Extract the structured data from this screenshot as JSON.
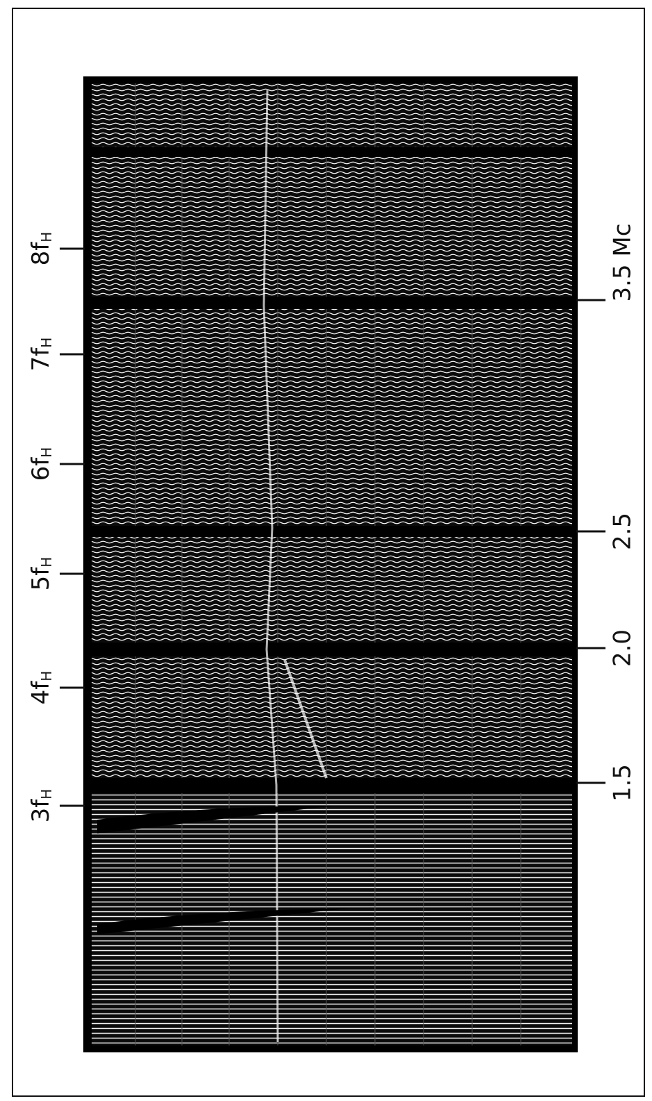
{
  "harmonic_labels": [
    {
      "text": "3f",
      "sub": "H"
    },
    {
      "text": "4f",
      "sub": "H"
    },
    {
      "text": "5f",
      "sub": "H"
    },
    {
      "text": "6f",
      "sub": "H"
    },
    {
      "text": "7f",
      "sub": "H"
    },
    {
      "text": "8f",
      "sub": "H"
    }
  ],
  "frequency_labels": [
    "1.5",
    "2.0",
    "2.5",
    "3.5 Mc"
  ]
}
